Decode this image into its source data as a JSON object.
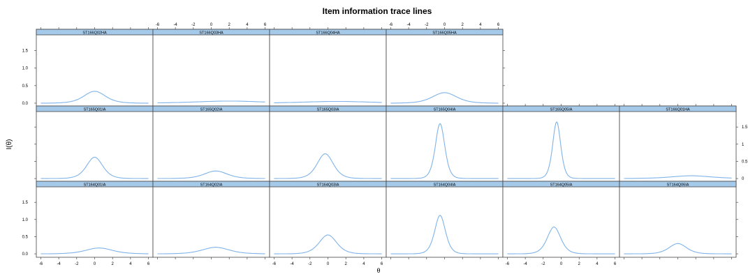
{
  "chart_data": {
    "type": "line",
    "title": "Item information trace lines",
    "xlabel": "θ",
    "ylabel": "I(θ)",
    "xlim": [
      -6.5,
      6.5
    ],
    "ylim": [
      -0.1,
      1.95
    ],
    "x_ticks": [
      "-6",
      "-4",
      "-2",
      "0",
      "2",
      "4",
      "6"
    ],
    "y_ticks": [
      "0.0",
      "0.5",
      "1.0",
      "1.5"
    ],
    "y_ticks_right": [
      "0",
      "0.5",
      "1",
      "1.5"
    ],
    "line_color": "#7fb3ea",
    "strip_color": "#a5c9e8",
    "rows": [
      {
        "panels": [
          {
            "label": "ST166Q02HA",
            "peak": 0.34,
            "loc": 0.0,
            "spread": 1.6
          },
          {
            "label": "ST166Q03HA",
            "peak": 0.06,
            "loc": 2.0,
            "spread": 5.0
          },
          {
            "label": "ST166Q04HA",
            "peak": 0.05,
            "loc": 1.0,
            "spread": 5.0
          },
          {
            "label": "ST166Q05HA",
            "peak": 0.3,
            "loc": 0.0,
            "spread": 1.8
          }
        ]
      },
      {
        "panels": [
          {
            "label": "ST165Q01IA",
            "peak": 0.62,
            "loc": 0.0,
            "spread": 1.2
          },
          {
            "label": "ST165Q02IA",
            "peak": 0.22,
            "loc": 0.5,
            "spread": 1.7
          },
          {
            "label": "ST165Q03IA",
            "peak": 0.72,
            "loc": -0.3,
            "spread": 1.2
          },
          {
            "label": "ST165Q04IA",
            "peak": 1.6,
            "loc": -0.5,
            "spread": 0.7
          },
          {
            "label": "ST165Q05IA",
            "peak": 1.65,
            "loc": -0.5,
            "spread": 0.6
          },
          {
            "label": "ST166Q01HA",
            "peak": 0.08,
            "loc": 1.5,
            "spread": 3.0
          }
        ]
      },
      {
        "panels": [
          {
            "label": "ST164Q01IA",
            "peak": 0.17,
            "loc": 0.5,
            "spread": 2.0
          },
          {
            "label": "ST164Q02IA",
            "peak": 0.19,
            "loc": 0.5,
            "spread": 2.0
          },
          {
            "label": "ST164Q03IA",
            "peak": 0.55,
            "loc": 0.0,
            "spread": 1.3
          },
          {
            "label": "ST164Q04IA",
            "peak": 1.12,
            "loc": -0.5,
            "spread": 0.8
          },
          {
            "label": "ST164Q05IA",
            "peak": 0.78,
            "loc": -0.8,
            "spread": 1.0
          },
          {
            "label": "ST164Q06IA",
            "peak": 0.3,
            "loc": 0.0,
            "spread": 1.3
          }
        ]
      }
    ]
  }
}
